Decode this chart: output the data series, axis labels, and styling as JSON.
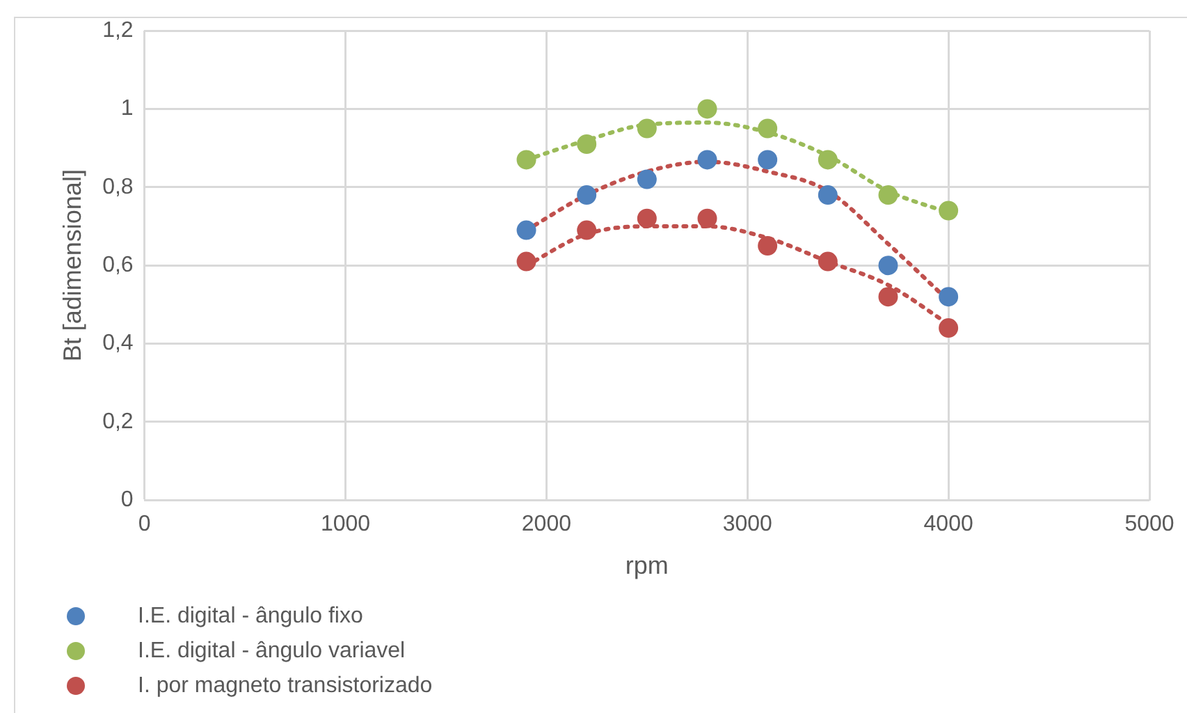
{
  "chart_data": {
    "type": "scatter",
    "xlabel": "rpm",
    "ylabel": "Bt [adimensional]",
    "xlim": [
      0,
      5000
    ],
    "xticks": [
      0,
      1000,
      2000,
      3000,
      4000,
      5000
    ],
    "ylim": [
      0,
      1.2
    ],
    "yticks": [
      0,
      {
        "value": 0.2,
        "label": "0,2"
      },
      {
        "value": 0.4,
        "label": "0,4"
      },
      {
        "value": 0.6,
        "label": "0,6"
      },
      {
        "value": 0.8,
        "label": "0,8"
      },
      1,
      {
        "value": 1.2,
        "label": "1,2"
      }
    ],
    "grid": true,
    "legend": "bottom left",
    "marker": "circle",
    "x": [
      1900,
      2200,
      2500,
      2800,
      3100,
      3400,
      3700,
      4000
    ],
    "series": [
      {
        "name": "I.E. digital - ângulo fixo",
        "color": "#4f81bd",
        "values": [
          0.69,
          0.78,
          0.82,
          0.87,
          0.87,
          0.78,
          0.6,
          0.52
        ]
      },
      {
        "name": "I.E. digital - ângulo variavel",
        "color": "#9bbb59",
        "values": [
          0.87,
          0.91,
          0.95,
          1.0,
          0.95,
          0.87,
          0.78,
          0.74
        ]
      },
      {
        "name": "I. por magneto transistorizado",
        "color": "#c0504d",
        "values": [
          0.61,
          0.69,
          0.72,
          0.72,
          0.65,
          0.61,
          0.52,
          0.44
        ]
      },
      {
        "type": "line",
        "color": "#9bbb59",
        "marker": "none",
        "line_style": "dotted",
        "x": [
          1900,
          2200,
          2500,
          2800,
          3100,
          3400,
          3700,
          4000
        ],
        "values": [
          0.87,
          0.92,
          0.96,
          0.965,
          0.94,
          0.88,
          0.79,
          0.735
        ]
      },
      {
        "type": "line",
        "color": "#c0504d",
        "marker": "none",
        "line_style": "dotted",
        "x": [
          1900,
          2200,
          2500,
          2800,
          3100,
          3400,
          3700,
          4000
        ],
        "values": [
          0.69,
          0.78,
          0.84,
          0.865,
          0.84,
          0.79,
          0.655,
          0.51
        ]
      },
      {
        "type": "line",
        "color": "#c0504d",
        "marker": "none",
        "line_style": "dotted",
        "x": [
          1900,
          2200,
          2500,
          2800,
          3100,
          3400,
          3700,
          4000
        ],
        "values": [
          0.6,
          0.68,
          0.7,
          0.7,
          0.67,
          0.61,
          0.55,
          0.45
        ]
      }
    ]
  }
}
